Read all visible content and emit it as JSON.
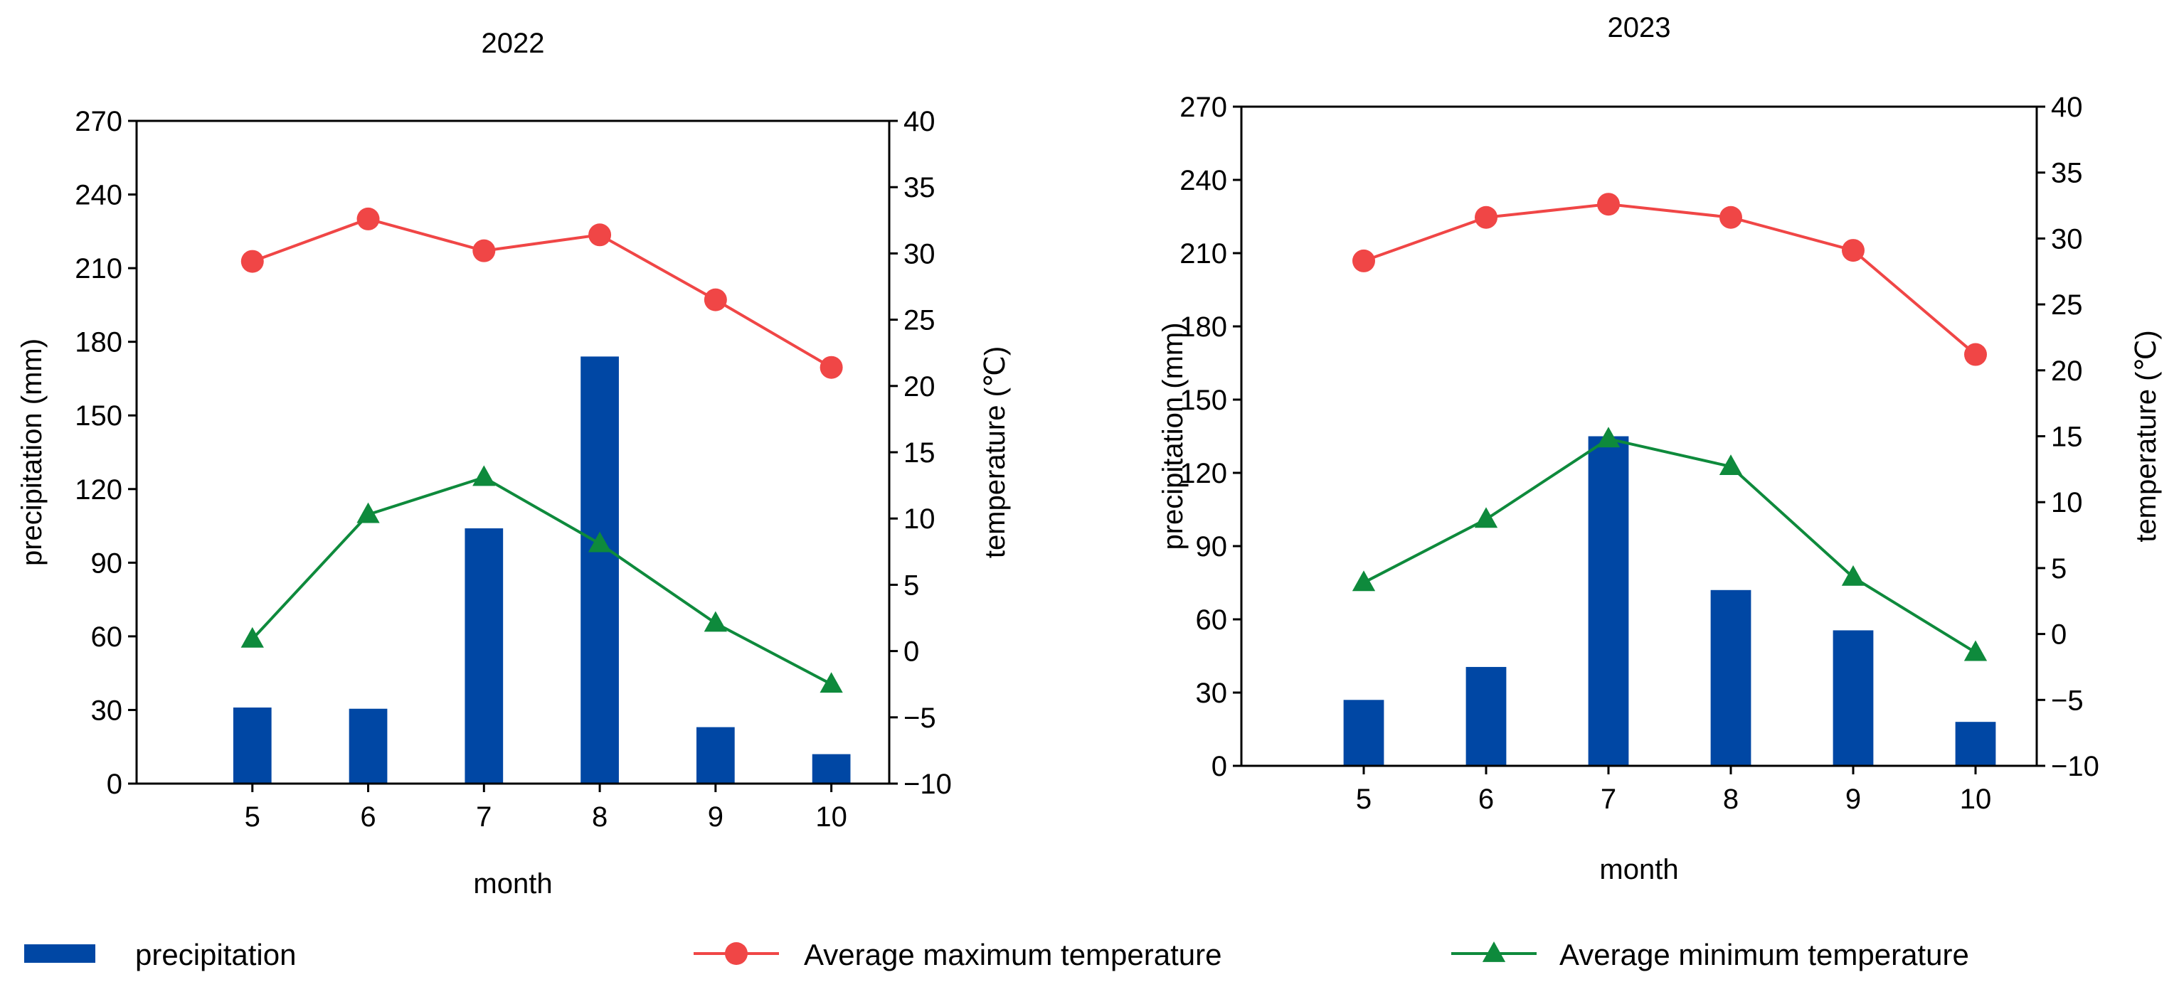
{
  "colors": {
    "precipitation": "#0047a4",
    "max_temp": "#f04646",
    "min_temp": "#0e8a3c",
    "axis": "#000000"
  },
  "legend": {
    "placement": "bottom",
    "precipitation": "precipitation",
    "max_temp": "Average maximum temperature",
    "min_temp": "Average minimum temperature"
  },
  "chart_data": [
    {
      "type": "bar+line",
      "title": "2022",
      "xlabel": "month",
      "ylabel": "precipitation (mm)",
      "y2label": "temperature (℃)",
      "categories": [
        "5",
        "6",
        "7",
        "8",
        "9",
        "10"
      ],
      "ylim": [
        0,
        270
      ],
      "yticks": [
        "0",
        "30",
        "60",
        "90",
        "120",
        "150",
        "180",
        "210",
        "240",
        "270"
      ],
      "y2lim": [
        -10,
        40
      ],
      "y2ticks": [
        "−10",
        "−5",
        "0",
        "5",
        "10",
        "15",
        "20",
        "25",
        "30",
        "35",
        "40"
      ],
      "grid": false,
      "series": [
        {
          "name": "precipitation",
          "type": "bar",
          "axis": "left",
          "values": [
            31,
            30.5,
            104,
            174,
            23,
            12
          ]
        },
        {
          "name": "Average maximum temperature",
          "type": "line",
          "marker": "circle",
          "axis": "right",
          "values": [
            29.4,
            32.6,
            30.2,
            31.4,
            26.5,
            21.4
          ]
        },
        {
          "name": "Average minimum temperature",
          "type": "line",
          "marker": "triangle",
          "axis": "right",
          "values": [
            0.9,
            10.3,
            13.1,
            8.1,
            2.1,
            -2.5
          ]
        }
      ]
    },
    {
      "type": "bar+line",
      "title": "2023",
      "xlabel": "month",
      "ylabel": "precipitation (mm)",
      "y2label": "temperature (℃)",
      "categories": [
        "5",
        "6",
        "7",
        "8",
        "9",
        "10"
      ],
      "ylim": [
        0,
        270
      ],
      "yticks": [
        "0",
        "30",
        "60",
        "90",
        "120",
        "150",
        "180",
        "210",
        "240",
        "270"
      ],
      "y2lim": [
        -10,
        40
      ],
      "y2ticks": [
        "−10",
        "−5",
        "0",
        "5",
        "10",
        "15",
        "20",
        "25",
        "30",
        "35",
        "40"
      ],
      "grid": false,
      "series": [
        {
          "name": "precipitation",
          "type": "bar",
          "axis": "left",
          "values": [
            27,
            40.5,
            135,
            72,
            55.5,
            18
          ]
        },
        {
          "name": "Average maximum temperature",
          "type": "line",
          "marker": "circle",
          "axis": "right",
          "values": [
            28.3,
            31.6,
            32.6,
            31.6,
            29.1,
            21.2
          ]
        },
        {
          "name": "Average minimum temperature",
          "type": "line",
          "marker": "triangle",
          "axis": "right",
          "values": [
            3.9,
            8.7,
            14.8,
            12.7,
            4.3,
            -1.4
          ]
        }
      ]
    }
  ]
}
